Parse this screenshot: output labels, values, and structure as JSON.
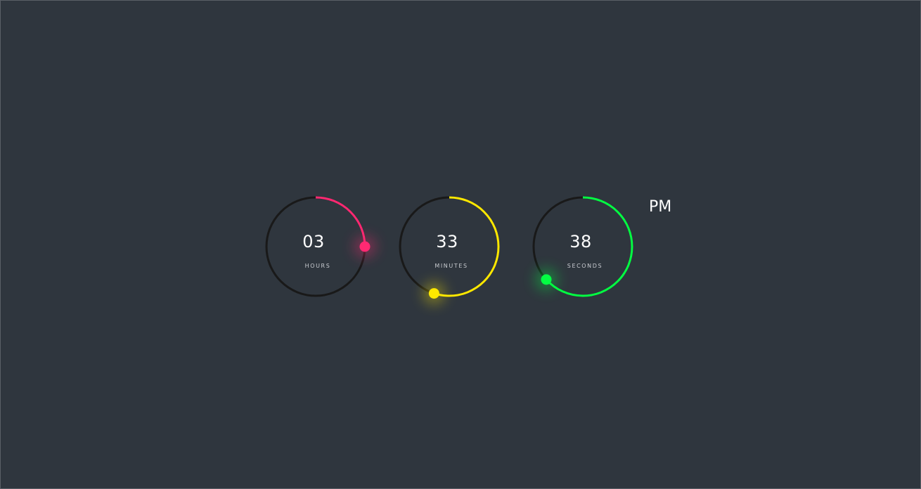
{
  "clock": {
    "hours": {
      "value": "03",
      "label": "HOURS",
      "progress": 0.25,
      "color": "#ff2972"
    },
    "minutes": {
      "value": "33",
      "label": "MINUTES",
      "progress": 0.55,
      "color": "#fee800"
    },
    "seconds": {
      "value": "38",
      "label": "SECONDS",
      "progress": 0.6333,
      "color": "#04fc43"
    },
    "period": "PM"
  },
  "colors": {
    "background": "#2f363e",
    "track": "#191919"
  }
}
